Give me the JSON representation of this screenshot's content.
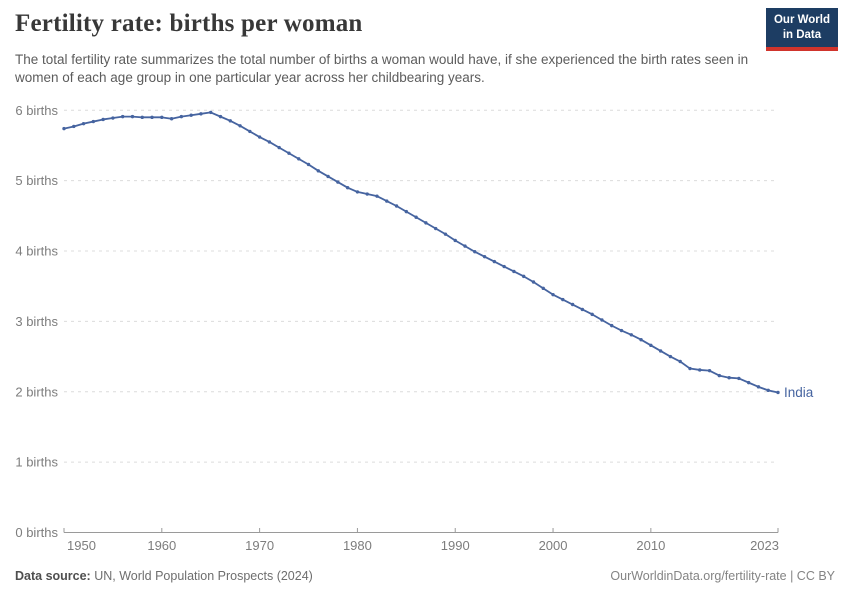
{
  "header": {
    "title": "Fertility rate: births per woman",
    "subtitle": "The total fertility rate summarizes the total number of births a woman would have, if she experienced the birth rates seen in women of each age group in one particular year across her childbearing years.",
    "logo": {
      "line1": "Our World",
      "line2": "in Data",
      "bg_color": "#1d3d63",
      "bar_color": "#d0342c"
    }
  },
  "chart_data": {
    "type": "line",
    "title": "Fertility rate: births per woman",
    "xlabel": "",
    "ylabel": "births",
    "xlim": [
      1950,
      2023
    ],
    "ylim": [
      0,
      6
    ],
    "grid": "horizontal-dashed",
    "legend_position": "end-of-line-label",
    "xticks": [
      1950,
      1960,
      1970,
      1980,
      1990,
      2000,
      2010,
      2023
    ],
    "yticks": [
      {
        "value": 0,
        "label": "0 births"
      },
      {
        "value": 1,
        "label": "1 births"
      },
      {
        "value": 2,
        "label": "2 births"
      },
      {
        "value": 3,
        "label": "3 births"
      },
      {
        "value": 4,
        "label": "4 births"
      },
      {
        "value": 5,
        "label": "5 births"
      },
      {
        "value": 6,
        "label": "6 births"
      }
    ],
    "colors": {
      "grid": "#dcdcdc",
      "axis": "#9a9a9a",
      "tick_label": "#7d7d7d"
    },
    "series": [
      {
        "name": "India",
        "color": "#4664a0",
        "x": [
          1950,
          1951,
          1952,
          1953,
          1954,
          1955,
          1956,
          1957,
          1958,
          1959,
          1960,
          1961,
          1962,
          1963,
          1964,
          1965,
          1966,
          1967,
          1968,
          1969,
          1970,
          1971,
          1972,
          1973,
          1974,
          1975,
          1976,
          1977,
          1978,
          1979,
          1980,
          1981,
          1982,
          1983,
          1984,
          1985,
          1986,
          1987,
          1988,
          1989,
          1990,
          1991,
          1992,
          1993,
          1994,
          1995,
          1996,
          1997,
          1998,
          1999,
          2000,
          2001,
          2002,
          2003,
          2004,
          2005,
          2006,
          2007,
          2008,
          2009,
          2010,
          2011,
          2012,
          2013,
          2014,
          2015,
          2016,
          2017,
          2018,
          2019,
          2020,
          2021,
          2022,
          2023
        ],
        "values": [
          5.74,
          5.77,
          5.81,
          5.84,
          5.87,
          5.89,
          5.91,
          5.91,
          5.9,
          5.9,
          5.9,
          5.88,
          5.91,
          5.93,
          5.95,
          5.97,
          5.91,
          5.85,
          5.78,
          5.7,
          5.62,
          5.55,
          5.47,
          5.39,
          5.31,
          5.23,
          5.14,
          5.06,
          4.98,
          4.9,
          4.84,
          4.81,
          4.78,
          4.71,
          4.64,
          4.56,
          4.48,
          4.4,
          4.32,
          4.24,
          4.15,
          4.07,
          3.99,
          3.92,
          3.85,
          3.78,
          3.71,
          3.64,
          3.56,
          3.47,
          3.38,
          3.31,
          3.24,
          3.17,
          3.1,
          3.02,
          2.94,
          2.87,
          2.81,
          2.74,
          2.66,
          2.58,
          2.5,
          2.43,
          2.33,
          2.31,
          2.3,
          2.23,
          2.2,
          2.19,
          2.13,
          2.07,
          2.02,
          1.99
        ]
      }
    ]
  },
  "footer": {
    "source_label": "Data source:",
    "source_text": " UN, World Population Prospects (2024)",
    "right": "OurWorldinData.org/fertility-rate | CC BY"
  }
}
